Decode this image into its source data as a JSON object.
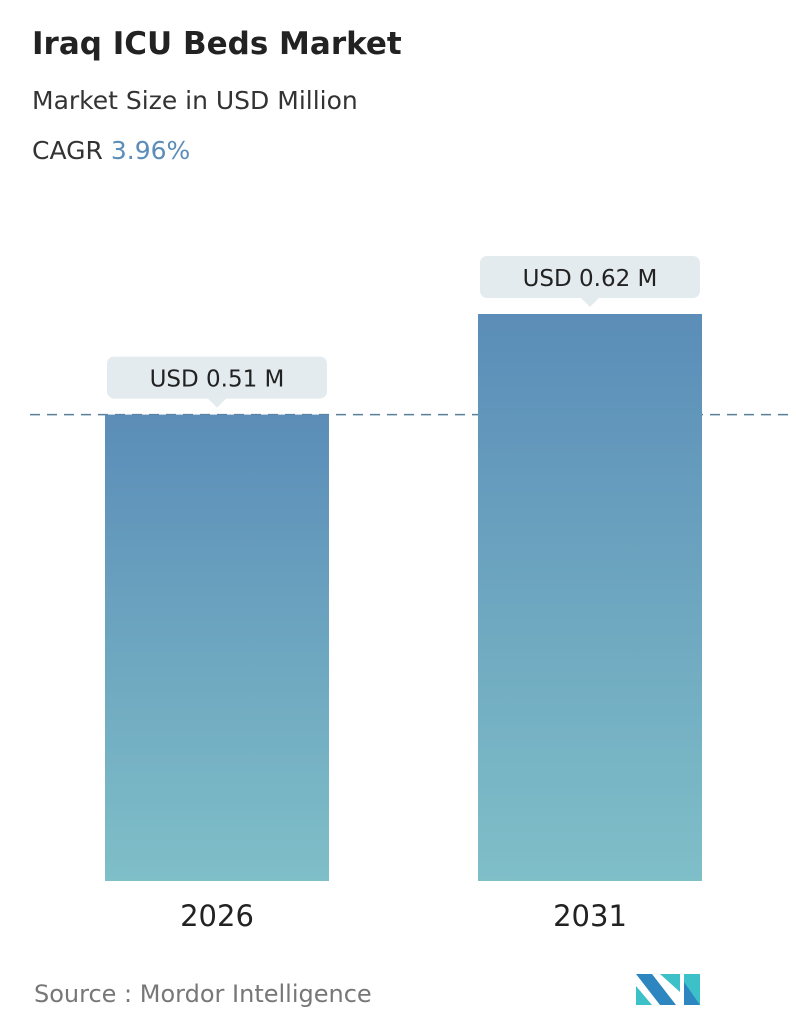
{
  "title": "Iraq ICU Beds Market",
  "subtitle": "Market Size in USD Million",
  "cagr_label": "CAGR",
  "cagr_value": "3.96%",
  "source": "Source :  Mordor Intelligence",
  "colors": {
    "bar_top": "#5b8db8",
    "bar_bottom": "#7fbfc8",
    "label_bg": "#e3ebee",
    "accent": "#5b8db8"
  },
  "chart_data": {
    "type": "bar",
    "categories": [
      "2026",
      "2031"
    ],
    "values": [
      0.51,
      0.62
    ],
    "data_labels": [
      "USD 0.51 M",
      "USD 0.62 M"
    ],
    "ylim": [
      0,
      0.62
    ],
    "grid": false,
    "reference_line": 0.51
  }
}
